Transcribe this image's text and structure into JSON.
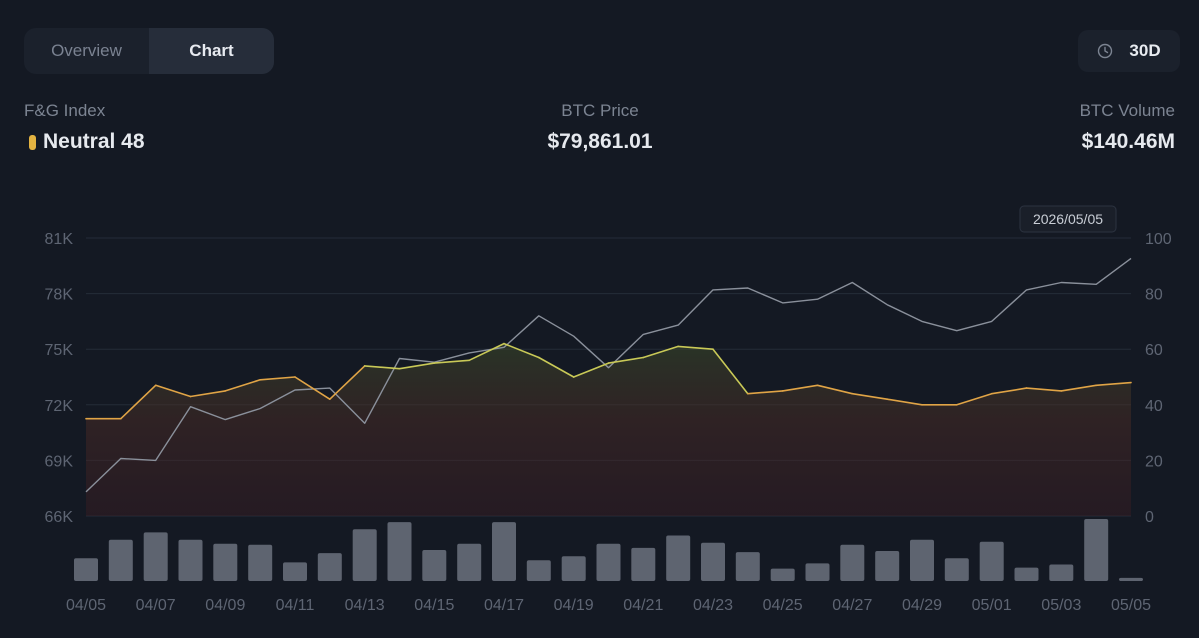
{
  "tabs": [
    {
      "label": "Overview",
      "active": false
    },
    {
      "label": "Chart",
      "active": true
    }
  ],
  "period": {
    "label": "30D",
    "icon": "clock-icon"
  },
  "stats": {
    "fg": {
      "label": "F&G Index",
      "value": "Neutral 48",
      "indicator_color": "#e3b341"
    },
    "price": {
      "label": "BTC Price",
      "value": "$79,861.01"
    },
    "volume": {
      "label": "BTC Volume",
      "value": "$140.46M"
    }
  },
  "tooltip": {
    "label": "2026/05/05"
  },
  "chart_data": {
    "type": "line",
    "dates": [
      "04/05",
      "04/06",
      "04/07",
      "04/08",
      "04/09",
      "04/10",
      "04/11",
      "04/12",
      "04/13",
      "04/14",
      "04/15",
      "04/16",
      "04/17",
      "04/18",
      "04/19",
      "04/20",
      "04/21",
      "04/22",
      "04/23",
      "04/24",
      "04/25",
      "04/26",
      "04/27",
      "04/28",
      "04/29",
      "04/30",
      "05/01",
      "05/02",
      "05/03",
      "05/04",
      "05/05"
    ],
    "x_tick_labels": [
      "04/05",
      "04/07",
      "04/09",
      "04/11",
      "04/13",
      "04/15",
      "04/17",
      "04/19",
      "04/21",
      "04/23",
      "04/25",
      "04/27",
      "04/29",
      "05/01",
      "05/03",
      "05/05"
    ],
    "left_axis": {
      "ticks": [
        "81K",
        "78K",
        "75K",
        "72K",
        "69K",
        "66K"
      ],
      "min": 66000,
      "max": 81000
    },
    "right_axis": {
      "ticks": [
        "100",
        "80",
        "60",
        "40",
        "20",
        "0"
      ],
      "min": 0,
      "max": 100
    },
    "series": [
      {
        "axis": "left",
        "color": "#8a909b",
        "values": [
          67300,
          69100,
          69000,
          71900,
          71200,
          71800,
          72800,
          72900,
          71000,
          74500,
          74300,
          74800,
          75100,
          76800,
          75700,
          74000,
          75800,
          76300,
          78200,
          78300,
          77500,
          77700,
          78600,
          77400,
          76500,
          76000,
          76500,
          78200,
          78600,
          78500,
          79900
        ]
      },
      {
        "axis": "right",
        "color": "#e0a446",
        "values": [
          35,
          35,
          47,
          43,
          45,
          49,
          50,
          42,
          54,
          53,
          55,
          56,
          62,
          57,
          50,
          55,
          57,
          61,
          60,
          44,
          45,
          47,
          44,
          42,
          40,
          40,
          44,
          46,
          45,
          47,
          48
        ]
      }
    ],
    "volume_bars": {
      "color": "#5e6470",
      "values": [
        22,
        40,
        47,
        40,
        36,
        35,
        18,
        27,
        50,
        57,
        30,
        36,
        57,
        20,
        24,
        36,
        32,
        44,
        37,
        28,
        12,
        17,
        35,
        29,
        40,
        22,
        38,
        13,
        16,
        60,
        3
      ]
    },
    "grid": true
  }
}
